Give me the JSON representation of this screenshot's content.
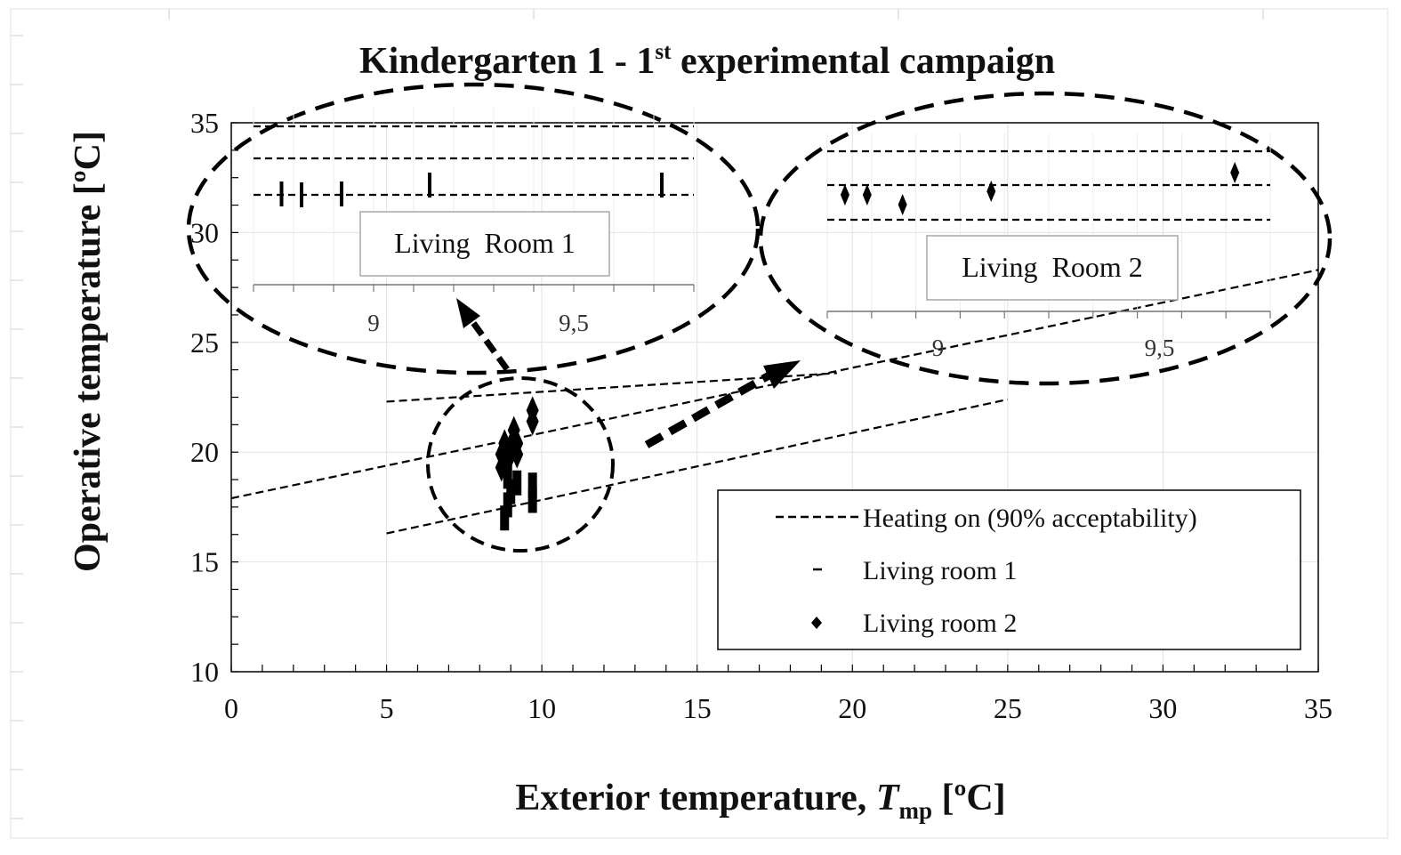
{
  "chart_data": {
    "type": "scatter",
    "title": {
      "main": "Kindergarten 1 - 1",
      "superscript": "st",
      "rest": " experimental campaign"
    },
    "xlabel": {
      "prefix": "Exterior temperature, ",
      "symbol": "T",
      "subscript": "mp",
      "unit": " [ºC]"
    },
    "ylabel": "Operative temperature [ºC]",
    "xlim": [
      0,
      35
    ],
    "ylim": [
      10,
      35
    ],
    "x_ticks": [
      0,
      5,
      10,
      15,
      20,
      25,
      30,
      35
    ],
    "y_ticks": [
      10,
      15,
      20,
      25,
      30,
      35
    ],
    "legend": {
      "placement": "bottom-right",
      "entries": [
        {
          "label": "Heating on (90% acceptability)",
          "marker": "dashed-line"
        },
        {
          "label": "Living room 1",
          "marker": "dash"
        },
        {
          "label": "Living room 2",
          "marker": "diamond"
        }
      ]
    },
    "comfort_lines": [
      {
        "name": "upper",
        "x": [
          5,
          19.5
        ],
        "y": [
          22.3,
          23.6
        ]
      },
      {
        "name": "middle",
        "x": [
          0,
          35
        ],
        "y": [
          17.9,
          28.3
        ]
      },
      {
        "name": "lower",
        "x": [
          5,
          25
        ],
        "y": [
          16.3,
          22.4
        ]
      }
    ],
    "series": [
      {
        "name": "Living room 1",
        "marker": "dash",
        "points": [
          [
            8.8,
            17.0
          ],
          [
            8.9,
            17.6
          ],
          [
            9.0,
            18.2
          ],
          [
            9.2,
            18.6
          ],
          [
            9.7,
            17.8
          ],
          [
            9.7,
            18.5
          ],
          [
            8.9,
            18.9
          ]
        ]
      },
      {
        "name": "Living room 2",
        "marker": "diamond",
        "points": [
          [
            8.7,
            19.3
          ],
          [
            8.7,
            19.9
          ],
          [
            8.8,
            20.4
          ],
          [
            8.9,
            19.6
          ],
          [
            9.0,
            20.2
          ],
          [
            9.1,
            20.6
          ],
          [
            9.1,
            21.0
          ],
          [
            9.2,
            19.9
          ],
          [
            9.2,
            20.4
          ],
          [
            9.7,
            21.4
          ],
          [
            9.7,
            21.9
          ]
        ]
      }
    ],
    "annotations": {
      "inset_1": {
        "label": "Living  Room 1",
        "x_ticks": [
          "9",
          "9,5"
        ],
        "x_values": [
          9,
          9.5
        ],
        "xlim": [
          8.7,
          9.8
        ],
        "marks": [
          8.77,
          8.82,
          8.92,
          9.14,
          9.72
        ]
      },
      "inset_2": {
        "label": "Living  Room 2",
        "x_ticks": [
          "9",
          "9,5"
        ],
        "x_values": [
          9,
          9.5
        ],
        "xlim": [
          8.75,
          9.75
        ],
        "marks": [
          8.79,
          8.84,
          8.92,
          9.12,
          9.67
        ]
      }
    }
  }
}
